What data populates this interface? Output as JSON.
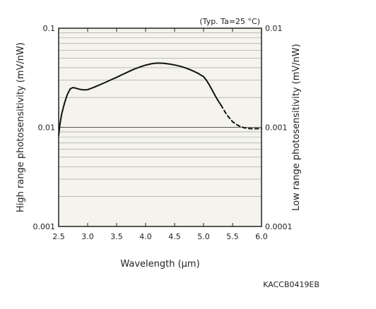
{
  "chart_data": {
    "type": "line",
    "condition_note": "(Typ. Ta=25 °C)",
    "xlabel": "Wavelength (µm)",
    "ylabel_left": "High range photosensitivity (mV/nW)",
    "ylabel_right": "Low range photosensitivity (mV/nW)",
    "x_ticks": [
      "2.5",
      "3.0",
      "3.5",
      "4.0",
      "4.5",
      "5.0",
      "5.5",
      "6.0"
    ],
    "y_ticks_left": [
      "0.001",
      "0.01",
      "0.1"
    ],
    "y_ticks_right": [
      "0.0001",
      "0.001",
      "0.01"
    ],
    "xlim": [
      2.5,
      6.0
    ],
    "ylim_left": [
      0.001,
      0.1
    ],
    "ylim_right": [
      0.0001,
      0.01
    ],
    "y_scale": "log",
    "grid": true,
    "series": [
      {
        "line_style": "solid",
        "axis": "left",
        "x": [
          2.5,
          2.52,
          2.55,
          2.6,
          2.65,
          2.7,
          2.75,
          2.8,
          2.85,
          2.9,
          2.95,
          3.0,
          3.1,
          3.2,
          3.3,
          3.4,
          3.5,
          3.6,
          3.7,
          3.8,
          3.9,
          4.0,
          4.1,
          4.2,
          4.3,
          4.4,
          4.5,
          4.6,
          4.7,
          4.8,
          4.9,
          5.0,
          5.05,
          5.1,
          5.15,
          5.2,
          5.25,
          5.3
        ],
        "y": [
          0.0083,
          0.0105,
          0.0135,
          0.0175,
          0.0215,
          0.0245,
          0.0252,
          0.0248,
          0.0243,
          0.024,
          0.0239,
          0.024,
          0.0252,
          0.0267,
          0.0283,
          0.0301,
          0.032,
          0.0341,
          0.0363,
          0.0386,
          0.0406,
          0.0424,
          0.0438,
          0.0445,
          0.0443,
          0.0436,
          0.0426,
          0.0413,
          0.0396,
          0.0375,
          0.0352,
          0.0325,
          0.0298,
          0.0268,
          0.0237,
          0.0209,
          0.0186,
          0.0168
        ]
      },
      {
        "line_style": "dashed",
        "axis": "right",
        "x": [
          5.3,
          5.4,
          5.5,
          5.6,
          5.7,
          5.8,
          5.9,
          6.0
        ],
        "y": [
          0.00168,
          0.00134,
          0.00114,
          0.00104,
          0.00099,
          0.00097,
          0.00097,
          0.00097
        ]
      }
    ]
  },
  "figure_code": "KACCB0419EB"
}
